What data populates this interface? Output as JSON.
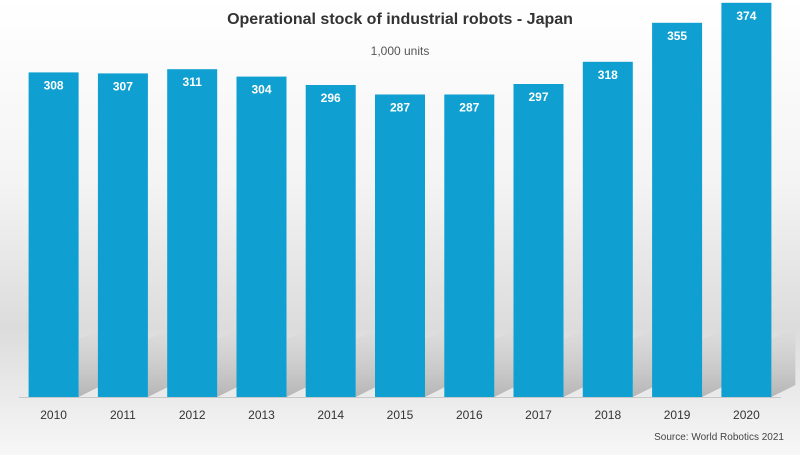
{
  "chart_data": {
    "type": "bar",
    "title": "Operational stock of industrial robots - Japan",
    "subtitle": "1,000 units",
    "source": "Source: World Robotics 2021",
    "categories": [
      "2010",
      "2011",
      "2012",
      "2013",
      "2014",
      "2015",
      "2016",
      "2017",
      "2018",
      "2019",
      "2020"
    ],
    "values": [
      308,
      307,
      311,
      304,
      296,
      287,
      287,
      297,
      318,
      355,
      374
    ],
    "data_labels": [
      "308",
      "307",
      "311",
      "304",
      "296",
      "287",
      "287",
      "297",
      "318",
      "355",
      "374"
    ],
    "ylim": [
      0,
      400
    ],
    "grid": false,
    "legend": "none",
    "colors": {
      "bar": "#0f9fd0",
      "label": "#ffffff",
      "axis": "#c8c8c8",
      "tick_label": "#333333"
    }
  }
}
